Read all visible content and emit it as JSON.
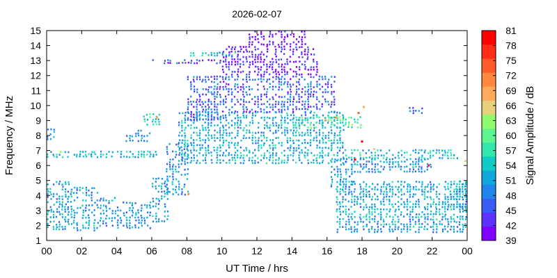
{
  "chart_data": {
    "type": "heatmap",
    "title": "2026-02-07",
    "xlabel": "UT Time / hrs",
    "ylabel": "Frequency / MHz",
    "xlim": [
      0,
      24
    ],
    "ylim": [
      1,
      15
    ],
    "x_ticks": [
      "00",
      "02",
      "04",
      "06",
      "08",
      "10",
      "12",
      "14",
      "16",
      "18",
      "20",
      "22",
      "00"
    ],
    "y_ticks": [
      "1",
      "2",
      "3",
      "4",
      "5",
      "6",
      "7",
      "8",
      "9",
      "10",
      "11",
      "12",
      "13",
      "14",
      "15"
    ],
    "colorbar": {
      "label": "Signal Amplitude / dB",
      "ticks": [
        "39",
        "42",
        "45",
        "48",
        "51",
        "54",
        "57",
        "60",
        "63",
        "66",
        "69",
        "72",
        "75",
        "78",
        "81"
      ],
      "colors": [
        "#8000ff",
        "#5b33fd",
        "#3a5cf6",
        "#1f85eb",
        "#0ea6db",
        "#11c9c5",
        "#33e6ae",
        "#5df58f",
        "#90fb6c",
        "#e6d07c",
        "#ffaa5a",
        "#ff8840",
        "#ff5a2a",
        "#ff2d16",
        "#ff0000"
      ]
    },
    "regions": [
      {
        "x": [
          0.0,
          1.5
        ],
        "y": [
          1.7,
          5.0
        ],
        "amplitude": 51
      },
      {
        "x": [
          1.5,
          3.0
        ],
        "y": [
          1.7,
          4.6
        ],
        "amplitude": 51
      },
      {
        "x": [
          3.0,
          4.0
        ],
        "y": [
          1.9,
          3.9
        ],
        "amplitude": 51
      },
      {
        "x": [
          4.0,
          6.0
        ],
        "y": [
          1.9,
          3.6
        ],
        "amplitude": 50
      },
      {
        "x": [
          6.0,
          7.0
        ],
        "y": [
          2.3,
          5.2
        ],
        "amplitude": 51
      },
      {
        "x": [
          0.0,
          6.2
        ],
        "y": [
          6.5,
          7.0
        ],
        "amplitude": 53
      },
      {
        "x": [
          6.8,
          8.0
        ],
        "y": [
          4.0,
          7.5
        ],
        "amplitude": 50
      },
      {
        "x": [
          7.5,
          17.0
        ],
        "y": [
          6.2,
          9.6
        ],
        "amplitude": 52
      },
      {
        "x": [
          14.0,
          18.0
        ],
        "y": [
          8.5,
          9.3
        ],
        "amplitude": 58
      },
      {
        "x": [
          8.0,
          10.0
        ],
        "y": [
          9.0,
          12.0
        ],
        "amplitude": 46
      },
      {
        "x": [
          10.0,
          16.5
        ],
        "y": [
          9.5,
          12.0
        ],
        "amplitude": 46
      },
      {
        "x": [
          10.0,
          15.5
        ],
        "y": [
          12.0,
          14.0
        ],
        "amplitude": 42
      },
      {
        "x": [
          11.5,
          14.8
        ],
        "y": [
          14.0,
          15.0
        ],
        "amplitude": 40
      },
      {
        "x": [
          6.0,
          10.0
        ],
        "y": [
          12.8,
          13.1
        ],
        "amplitude": 45
      },
      {
        "x": [
          8.0,
          11.0
        ],
        "y": [
          13.3,
          13.6
        ],
        "amplitude": 54
      },
      {
        "x": [
          16.2,
          17.4
        ],
        "y": [
          4.5,
          6.5
        ],
        "amplitude": 51
      },
      {
        "x": [
          16.5,
          24.0
        ],
        "y": [
          2.5,
          5.0
        ],
        "amplitude": 52
      },
      {
        "x": [
          16.5,
          24.0
        ],
        "y": [
          1.5,
          2.5
        ],
        "amplitude": 51
      },
      {
        "x": [
          17.0,
          23.5
        ],
        "y": [
          6.5,
          7.1
        ],
        "amplitude": 54
      },
      {
        "x": [
          17.0,
          22.0
        ],
        "y": [
          5.5,
          6.5
        ],
        "amplitude": 50
      },
      {
        "x": [
          20.5,
          21.5
        ],
        "y": [
          9.4,
          9.9
        ],
        "amplitude": 48
      },
      {
        "x": [
          23.0,
          24.0
        ],
        "y": [
          3.0,
          5.0
        ],
        "amplitude": 52
      },
      {
        "x": [
          0.0,
          0.5
        ],
        "y": [
          7.7,
          8.5
        ],
        "amplitude": 52
      },
      {
        "x": [
          4.5,
          6.0
        ],
        "y": [
          7.7,
          8.4
        ],
        "amplitude": 50
      },
      {
        "x": [
          5.5,
          6.5
        ],
        "y": [
          8.8,
          9.5
        ],
        "amplitude": 55
      }
    ],
    "hotspots": [
      {
        "x": 17.6,
        "y": 6.4,
        "amplitude": 81
      },
      {
        "x": 18.0,
        "y": 7.6,
        "amplitude": 81
      },
      {
        "x": 17.8,
        "y": 9.5,
        "amplitude": 75
      },
      {
        "x": 16.5,
        "y": 9.2,
        "amplitude": 72
      },
      {
        "x": 18.1,
        "y": 9.9,
        "amplitude": 69
      },
      {
        "x": 8.1,
        "y": 4.1,
        "amplitude": 72
      },
      {
        "x": 21.8,
        "y": 6.0,
        "amplitude": 78
      },
      {
        "x": 15.9,
        "y": 9.0,
        "amplitude": 69
      },
      {
        "x": 18.7,
        "y": 7.1,
        "amplitude": 66
      },
      {
        "x": 6.3,
        "y": 9.2,
        "amplitude": 69
      },
      {
        "x": 23.9,
        "y": 6.3,
        "amplitude": 66
      },
      {
        "x": 0.8,
        "y": 6.9,
        "amplitude": 63
      }
    ]
  }
}
